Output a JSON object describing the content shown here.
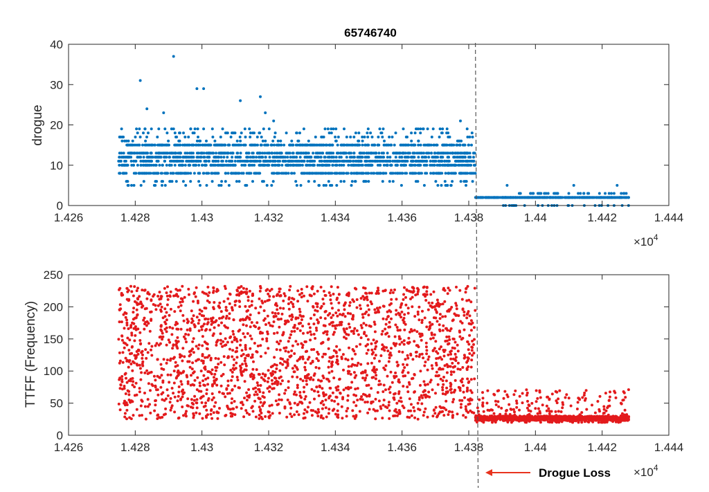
{
  "chart_data": [
    {
      "type": "scatter",
      "title": "65746740",
      "ylabel": "drogue",
      "xlabel": "",
      "xlim": [
        1.426,
        1.444
      ],
      "ylim": [
        0,
        40
      ],
      "xticks": [
        "1.426",
        "1.428",
        "1.43",
        "1.432",
        "1.434",
        "1.436",
        "1.438",
        "1.44",
        "1.442",
        "1.444"
      ],
      "yticks": [
        "0",
        "10",
        "20",
        "30",
        "40"
      ],
      "x_multiplier": "×10",
      "x_multiplier_exp": "4",
      "color": "#0072BD",
      "grid": false,
      "series": [
        {
          "x_range": [
            1.4275,
            1.4428
          ],
          "points": [
            [
              1.42815,
              31
            ],
            [
              1.42915,
              37
            ],
            [
              1.42985,
              29
            ],
            [
              1.43005,
              29
            ],
            [
              1.43115,
              26
            ],
            [
              1.43175,
              27
            ],
            [
              1.42835,
              24
            ],
            [
              1.4319,
              23
            ],
            [
              1.42885,
              23
            ],
            [
              1.43215,
              21
            ],
            [
              1.43655,
              19
            ],
            [
              1.43775,
              21
            ],
            [
              1.43185,
              19
            ],
            [
              1.43655,
              18
            ],
            [
              1.43735,
              19
            ],
            [
              1.43915,
              5
            ],
            [
              1.43985,
              3
            ],
            [
              1.44115,
              5
            ],
            [
              1.44245,
              5
            ],
            [
              1.43955,
              3
            ],
            [
              1.44145,
              3
            ]
          ],
          "levels_before_loss": [
            8,
            10,
            11,
            12,
            13,
            15
          ],
          "levels_after_loss": [
            2
          ],
          "sparse_levels_before": [
            5,
            6,
            16,
            17,
            18,
            19
          ],
          "sparse_levels_after": [
            0,
            3
          ]
        }
      ]
    },
    {
      "type": "scatter",
      "title": "",
      "ylabel": "TTFF (Frequency)",
      "xlabel": "",
      "xlim": [
        1.426,
        1.444
      ],
      "ylim": [
        0,
        250
      ],
      "xticks": [
        "1.426",
        "1.428",
        "1.43",
        "1.432",
        "1.434",
        "1.436",
        "1.438",
        "1.44",
        "1.442",
        "1.444"
      ],
      "yticks": [
        "0",
        "50",
        "100",
        "150",
        "200",
        "250"
      ],
      "x_multiplier": "×10",
      "x_multiplier_exp": "4",
      "color": "#E31A1C",
      "grid": false,
      "series": [
        {
          "x_range": [
            1.4275,
            1.4428
          ],
          "y_range_before_loss": [
            25,
            232
          ],
          "y_range_after_loss": [
            20,
            72
          ],
          "dense_band_after_loss": [
            23,
            30
          ]
        }
      ]
    }
  ],
  "annotation": {
    "label": "Drogue Loss",
    "x": 1.4382
  }
}
